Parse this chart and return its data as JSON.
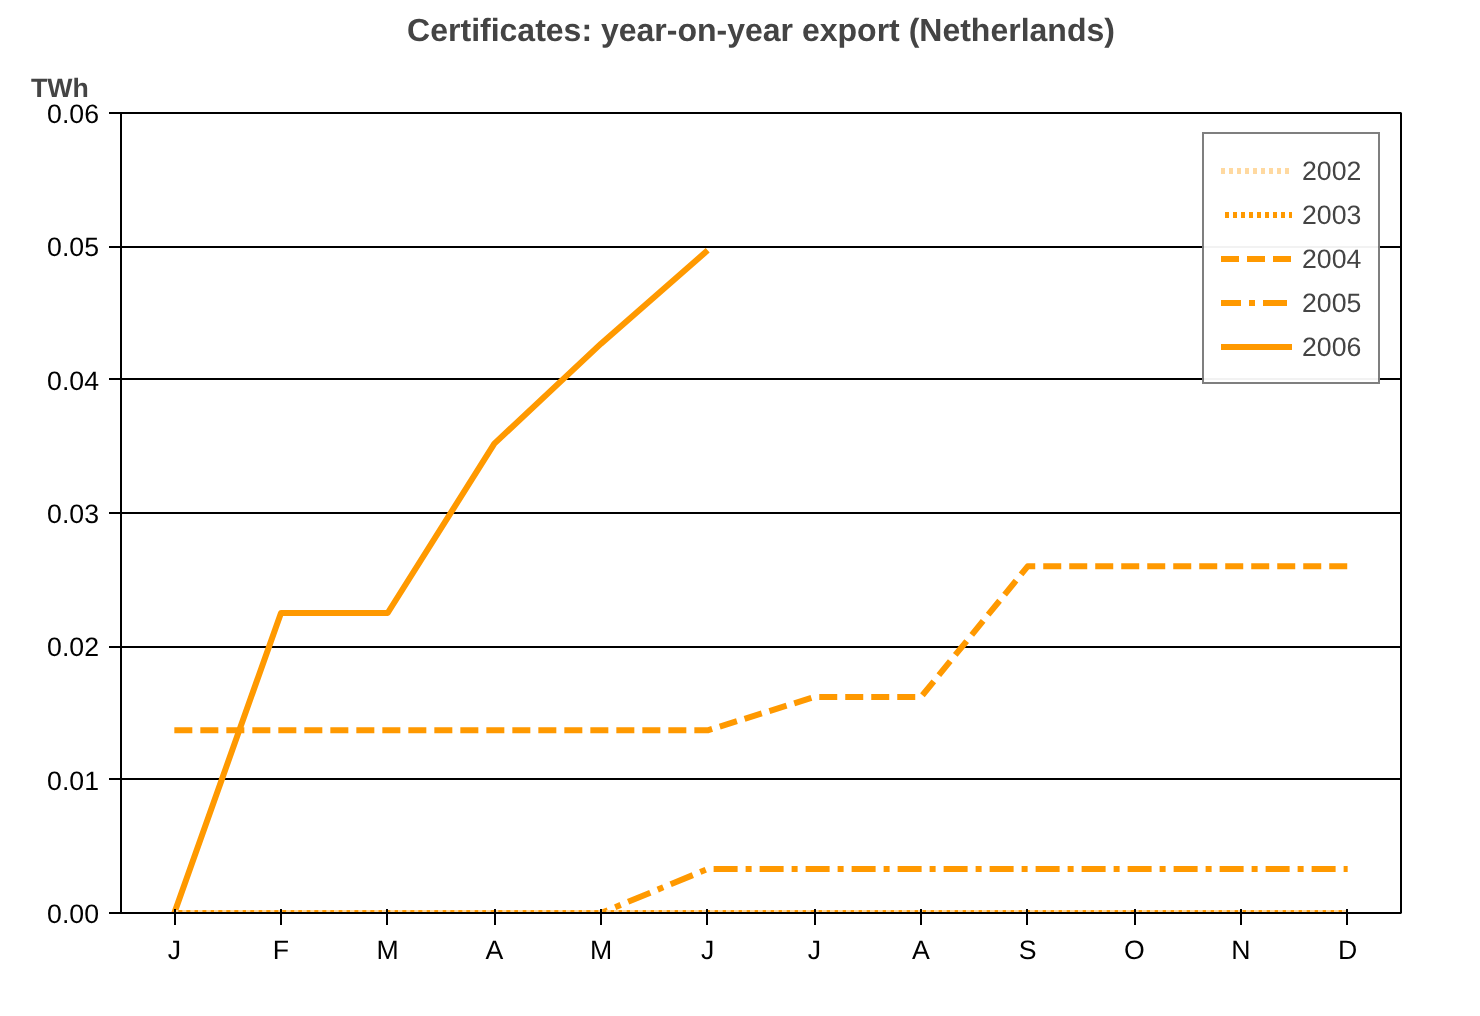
{
  "chart_data": {
    "type": "line",
    "title": "Certificates: year-on-year export (Netherlands)",
    "ylabel": "TWh",
    "categories": [
      "J",
      "F",
      "M",
      "A",
      "M",
      "J",
      "J",
      "A",
      "S",
      "O",
      "N",
      "D"
    ],
    "ylim": [
      0,
      0.06
    ],
    "yticks": [
      {
        "value": 0,
        "label": "0.00"
      },
      {
        "value": 0.01,
        "label": "0.01"
      },
      {
        "value": 0.02,
        "label": "0.02"
      },
      {
        "value": 0.03,
        "label": "0.03"
      },
      {
        "value": 0.04,
        "label": "0.04"
      },
      {
        "value": 0.05,
        "label": "0.05"
      },
      {
        "value": 0.06,
        "label": "0.06"
      }
    ],
    "grid": "y",
    "legend": "top right",
    "series": [
      {
        "name": "2002",
        "color": "#ffd9a0",
        "line_style": "dotted",
        "values": [
          0,
          0,
          0,
          0,
          0,
          0,
          0,
          0,
          0,
          0,
          0,
          0
        ]
      },
      {
        "name": "2003",
        "color": "#ff9900",
        "line_style": "dotted",
        "values": [
          0,
          0,
          0,
          0,
          0,
          0,
          0,
          0,
          0,
          0,
          0,
          0
        ]
      },
      {
        "name": "2004",
        "color": "#ff9900",
        "line_style": "dashed",
        "values": [
          0.0137,
          0.0137,
          0.0137,
          0.0137,
          0.0137,
          0.0137,
          0.0162,
          0.0162,
          0.026,
          0.026,
          0.026,
          0.026
        ]
      },
      {
        "name": "2005",
        "color": "#ff9900",
        "line_style": "dashdot",
        "values": [
          0,
          0,
          0,
          0,
          0,
          0.0033,
          0.0033,
          0.0033,
          0.0033,
          0.0033,
          0.0033,
          0.0033
        ]
      },
      {
        "name": "2006",
        "color": "#ff9900",
        "line_style": "solid",
        "values": [
          0,
          0.0225,
          0.0225,
          0.0352,
          0.0427,
          0.0497,
          null,
          null,
          null,
          null,
          null,
          null
        ]
      }
    ]
  }
}
